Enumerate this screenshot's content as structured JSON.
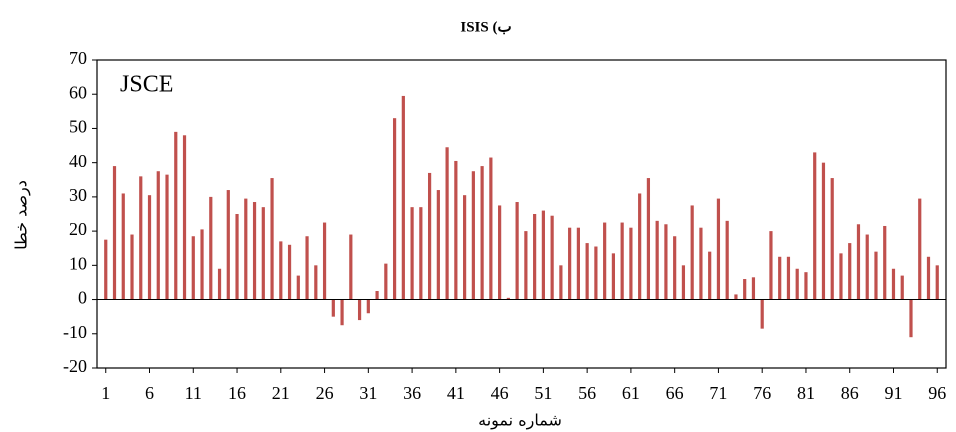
{
  "chart_data": {
    "type": "bar",
    "title": "ب) ISIS",
    "annotation": "JSCE",
    "x_label": "شماره نمونه",
    "y_label": "درصد خطا",
    "x": [
      1,
      2,
      3,
      4,
      5,
      6,
      7,
      8,
      9,
      10,
      11,
      12,
      13,
      14,
      15,
      16,
      17,
      18,
      19,
      20,
      21,
      22,
      23,
      24,
      25,
      26,
      27,
      28,
      29,
      30,
      31,
      32,
      33,
      34,
      35,
      36,
      37,
      38,
      39,
      40,
      41,
      42,
      43,
      44,
      45,
      46,
      47,
      48,
      49,
      50,
      51,
      52,
      53,
      54,
      55,
      56,
      57,
      58,
      59,
      60,
      61,
      62,
      63,
      64,
      65,
      66,
      67,
      68,
      69,
      70,
      71,
      72,
      73,
      74,
      75,
      76,
      77,
      78,
      79,
      80,
      81,
      82,
      83,
      84,
      85,
      86,
      87,
      88,
      89,
      90,
      91,
      92,
      93,
      94,
      95,
      96
    ],
    "values": [
      17.5,
      39,
      31,
      19,
      36,
      30.5,
      37.5,
      36.5,
      49,
      48,
      18.5,
      20.5,
      30,
      9,
      32,
      25,
      29.5,
      28.5,
      27,
      35.5,
      17,
      16,
      7,
      18.5,
      10,
      22.5,
      -5,
      -7.5,
      19,
      -6,
      -4,
      2.5,
      10.5,
      53,
      59.5,
      27,
      27,
      37,
      32,
      44.5,
      40.5,
      30.5,
      37.5,
      39,
      41.5,
      27.5,
      0.5,
      28.5,
      20,
      25,
      26,
      24.5,
      10,
      21,
      21,
      16.5,
      15.5,
      22.5,
      13.5,
      22.5,
      21,
      31,
      35.5,
      23,
      22,
      18.5,
      10,
      27.5,
      21,
      14,
      29.5,
      23,
      1.5,
      6,
      6.5,
      -8.5,
      20,
      12.5,
      12.5,
      9,
      8,
      43,
      40,
      35.5,
      13.5,
      16.5,
      22,
      19,
      14,
      21.5,
      9,
      7,
      -11,
      29.5,
      12.5,
      10
    ],
    "color": "#c0504d",
    "xlim": [
      0,
      97
    ],
    "ylim": [
      -20,
      70
    ],
    "xticks": [
      1,
      6,
      11,
      16,
      21,
      26,
      31,
      36,
      41,
      46,
      51,
      56,
      61,
      66,
      71,
      76,
      81,
      86,
      91,
      96
    ],
    "yticks": [
      -20,
      -10,
      0,
      10,
      20,
      30,
      40,
      50,
      60,
      70
    ]
  }
}
